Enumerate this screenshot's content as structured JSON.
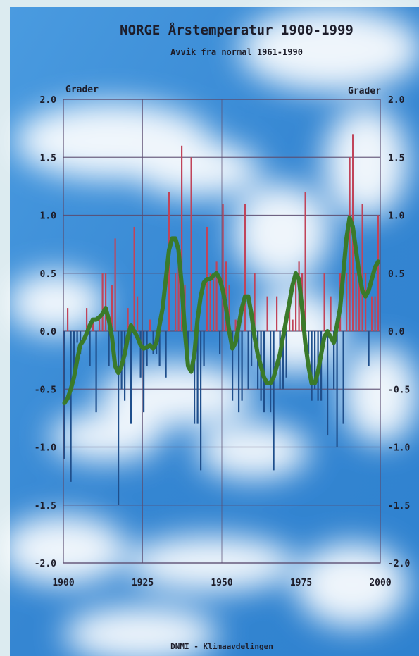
{
  "chart_data": {
    "type": "bar",
    "title": "NORGE Årstemperatur 1900-1999",
    "subtitle": "Avvik fra normal 1961-1990",
    "ylabel_left": "Grader",
    "ylabel_right": "Grader",
    "footer": "DNMI - Klimaavdelingen",
    "xlim": [
      1900,
      2000
    ],
    "ylim": [
      -2.0,
      2.0
    ],
    "x_ticks": [
      "1900",
      "1925",
      "1950",
      "1975",
      "2000"
    ],
    "y_ticks": [
      "2.0",
      "1.5",
      "1.0",
      "0.5",
      "0.0",
      "-0.5",
      "-1.0",
      "-1.5",
      "-2.0"
    ],
    "grid": true,
    "x": [
      1900,
      1901,
      1902,
      1903,
      1904,
      1905,
      1906,
      1907,
      1908,
      1909,
      1910,
      1911,
      1912,
      1913,
      1914,
      1915,
      1916,
      1917,
      1918,
      1919,
      1920,
      1921,
      1922,
      1923,
      1924,
      1925,
      1926,
      1927,
      1928,
      1929,
      1930,
      1931,
      1932,
      1933,
      1934,
      1935,
      1936,
      1937,
      1938,
      1939,
      1940,
      1941,
      1942,
      1943,
      1944,
      1945,
      1946,
      1947,
      1948,
      1949,
      1950,
      1951,
      1952,
      1953,
      1954,
      1955,
      1956,
      1957,
      1958,
      1959,
      1960,
      1961,
      1962,
      1963,
      1964,
      1965,
      1966,
      1967,
      1968,
      1969,
      1970,
      1971,
      1972,
      1973,
      1974,
      1975,
      1976,
      1977,
      1978,
      1979,
      1980,
      1981,
      1982,
      1983,
      1984,
      1985,
      1986,
      1987,
      1988,
      1989,
      1990,
      1991,
      1992,
      1993,
      1994,
      1995,
      1996,
      1997,
      1998,
      1999
    ],
    "series": [
      {
        "values": [
          -1.1,
          0.2,
          -1.3,
          -0.4,
          -0.1,
          -0.2,
          0.0,
          0.2,
          -0.3,
          0.1,
          -0.7,
          0.1,
          0.5,
          0.5,
          -0.3,
          0.4,
          0.8,
          -1.5,
          -0.5,
          -0.6,
          0.2,
          -0.8,
          0.9,
          0.3,
          -0.4,
          -0.7,
          -0.3,
          0.1,
          -0.2,
          -0.2,
          -0.3,
          0.0,
          -0.4,
          1.2,
          0.0,
          0.5,
          0.6,
          1.6,
          0.4,
          -0.3,
          1.5,
          -0.8,
          -0.8,
          -1.2,
          -0.3,
          0.9,
          0.5,
          0.5,
          0.6,
          -0.2,
          1.1,
          0.6,
          0.4,
          -0.6,
          0.1,
          -0.7,
          -0.6,
          1.1,
          -0.5,
          -0.3,
          0.5,
          -0.5,
          -0.6,
          -0.7,
          0.3,
          -0.7,
          -1.2,
          0.3,
          -0.5,
          -0.5,
          -0.4,
          0.3,
          0.1,
          0.5,
          0.6,
          0.5,
          1.2,
          -0.2,
          -0.6,
          -0.5,
          -0.6,
          -0.6,
          0.5,
          -0.9,
          0.3,
          -0.5,
          -1.0,
          0.5,
          -0.8,
          0.5,
          1.5,
          1.7,
          0.5,
          0.5,
          1.1,
          0.5,
          -0.3,
          0.3,
          0.3,
          1.0
        ]
      },
      {
        "type": "line",
        "values": [
          -0.62,
          -0.58,
          -0.5,
          -0.4,
          -0.25,
          -0.12,
          -0.08,
          -0.02,
          0.05,
          0.1,
          0.1,
          0.12,
          0.15,
          0.2,
          0.1,
          -0.05,
          -0.3,
          -0.36,
          -0.3,
          -0.2,
          -0.05,
          0.05,
          0.0,
          -0.05,
          -0.12,
          -0.15,
          -0.14,
          -0.12,
          -0.15,
          -0.1,
          0.05,
          0.2,
          0.45,
          0.7,
          0.8,
          0.8,
          0.7,
          0.4,
          0.0,
          -0.3,
          -0.35,
          -0.2,
          0.1,
          0.3,
          0.42,
          0.45,
          0.45,
          0.48,
          0.5,
          0.45,
          0.35,
          0.2,
          0.0,
          -0.15,
          -0.1,
          0.05,
          0.2,
          0.3,
          0.3,
          0.15,
          -0.05,
          -0.2,
          -0.3,
          -0.4,
          -0.45,
          -0.45,
          -0.4,
          -0.3,
          -0.2,
          -0.05,
          0.1,
          0.25,
          0.4,
          0.5,
          0.45,
          0.2,
          -0.1,
          -0.3,
          -0.45,
          -0.45,
          -0.35,
          -0.2,
          -0.05,
          0.0,
          -0.05,
          -0.1,
          0.05,
          0.2,
          0.5,
          0.8,
          0.98,
          0.9,
          0.7,
          0.5,
          0.35,
          0.3,
          0.35,
          0.45,
          0.55,
          0.6
        ]
      }
    ],
    "colors": {
      "positive_bar": "#c0445a",
      "negative_bar": "#1f4f8c",
      "trend_line": "#3a7a2a",
      "grid": "#5a4a6e",
      "text": "#1d1d2a",
      "sky_blue": "#3b8fd6",
      "border": "#e8f2f6"
    }
  }
}
